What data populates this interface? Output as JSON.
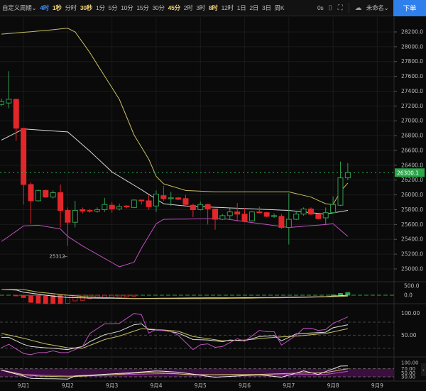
{
  "toolbar": {
    "periods": [
      {
        "label": "自定义周期⌄",
        "state": "normal"
      },
      {
        "label": "4时",
        "state": "active"
      },
      {
        "label": "1秒",
        "state": "fav"
      },
      {
        "label": "分时",
        "state": "normal"
      },
      {
        "label": "30秒",
        "state": "fav"
      },
      {
        "label": "1分",
        "state": "normal"
      },
      {
        "label": "5分",
        "state": "normal"
      },
      {
        "label": "10分",
        "state": "normal"
      },
      {
        "label": "15分",
        "state": "normal"
      },
      {
        "label": "30分",
        "state": "normal"
      },
      {
        "label": "45分",
        "state": "fav"
      },
      {
        "label": "2时",
        "state": "normal"
      },
      {
        "label": "3时",
        "state": "normal"
      },
      {
        "label": "8时",
        "state": "fav"
      },
      {
        "label": "12时",
        "state": "normal"
      },
      {
        "label": "1日",
        "state": "normal"
      },
      {
        "label": "2日",
        "state": "normal"
      },
      {
        "label": "3日",
        "state": "normal"
      },
      {
        "label": "周K",
        "state": "normal"
      }
    ],
    "countdown": "0s",
    "layout_name": "未命名⌄",
    "order_button": "下单",
    "icons": [
      "camera-icon",
      "fullscreen-icon",
      "cloud-icon"
    ]
  },
  "colors": {
    "background": "#0a0a0a",
    "up": "#2e9e4f",
    "down": "#e3262a",
    "boll_upper": "#c8c060",
    "boll_mid": "#d8d8d8",
    "boll_lower": "#c050c0",
    "price_tag": "#2aa84a",
    "accent": "#2f80ed"
  },
  "chart_data": {
    "type": "candlestick",
    "interval": "4时",
    "price_axis": {
      "ticks": [
        "28200.0",
        "28000.0",
        "27800.0",
        "27600.0",
        "27400.0",
        "27200.0",
        "27000.0",
        "26800.0",
        "26600.0",
        "26400.0",
        "26200.0",
        "26000.0",
        "25800.0",
        "25600.0",
        "25400.0",
        "25200.0",
        "25000.0"
      ],
      "ylim": [
        24900,
        28380
      ]
    },
    "last_price": "26300.1",
    "low_annotation": "25312",
    "x_ticks": [
      "9月1",
      "9月2",
      "9月3",
      "9月4",
      "9月5",
      "9月6",
      "9月7",
      "9月8",
      "9月9"
    ],
    "grid": true,
    "candles_ohlc": [
      [
        27220,
        27300,
        27200,
        27260
      ],
      [
        27240,
        27670,
        27170,
        27290
      ],
      [
        27290,
        27300,
        26730,
        26900
      ],
      [
        26900,
        26900,
        25870,
        26140
      ],
      [
        26140,
        26170,
        25610,
        25920
      ],
      [
        25920,
        26070,
        25910,
        26060
      ],
      [
        26060,
        26070,
        25960,
        25970
      ],
      [
        25970,
        26060,
        25950,
        26030
      ],
      [
        26030,
        26140,
        25560,
        25790
      ],
      [
        25790,
        25830,
        25312,
        25630
      ],
      [
        25630,
        25920,
        25560,
        25790
      ],
      [
        25800,
        25830,
        25750,
        25780
      ],
      [
        25790,
        25810,
        25760,
        25780
      ],
      [
        25780,
        25830,
        25760,
        25800
      ],
      [
        25800,
        25960,
        25770,
        25870
      ],
      [
        25860,
        25900,
        25760,
        25810
      ],
      [
        25810,
        25880,
        25790,
        25840
      ],
      [
        25850,
        25860,
        25820,
        25840
      ],
      [
        25830,
        25940,
        25820,
        25930
      ],
      [
        25930,
        25930,
        25870,
        25920
      ],
      [
        25920,
        26000,
        25800,
        25840
      ],
      [
        25850,
        26060,
        25770,
        26010
      ],
      [
        25990,
        26120,
        25920,
        25950
      ],
      [
        25950,
        26040,
        25850,
        25960
      ],
      [
        25960,
        25970,
        25930,
        25940
      ],
      [
        25950,
        26000,
        25860,
        25870
      ],
      [
        25860,
        25880,
        25700,
        25800
      ],
      [
        25800,
        25910,
        25790,
        25870
      ],
      [
        25870,
        25880,
        25600,
        25810
      ],
      [
        25810,
        25810,
        25530,
        25670
      ],
      [
        25670,
        25740,
        25660,
        25720
      ],
      [
        25720,
        25820,
        25660,
        25770
      ],
      [
        25770,
        25890,
        25640,
        25740
      ],
      [
        25740,
        25820,
        25630,
        25650
      ],
      [
        25650,
        25780,
        25640,
        25770
      ],
      [
        25770,
        25840,
        25750,
        25760
      ],
      [
        25760,
        25770,
        25700,
        25710
      ],
      [
        25710,
        25750,
        25690,
        25720
      ],
      [
        25710,
        25740,
        25540,
        25560
      ],
      [
        25560,
        26020,
        25330,
        25670
      ],
      [
        25670,
        25770,
        25660,
        25740
      ],
      [
        25740,
        25830,
        25720,
        25810
      ],
      [
        25810,
        25830,
        25730,
        25740
      ],
      [
        25740,
        25740,
        25670,
        25680
      ],
      [
        25690,
        25830,
        25600,
        25760
      ],
      [
        25760,
        25980,
        25760,
        25870
      ],
      [
        25860,
        26450,
        25850,
        26230
      ],
      [
        26230,
        26430,
        26200,
        26300.1
      ]
    ],
    "boll": {
      "upper": [
        [
          0,
          28170
        ],
        [
          6,
          28220
        ],
        [
          9,
          28250
        ],
        [
          10,
          28200
        ],
        [
          12,
          27920
        ],
        [
          16,
          27290
        ],
        [
          18,
          26810
        ],
        [
          20,
          26480
        ],
        [
          21,
          26250
        ],
        [
          22,
          26150
        ],
        [
          25,
          26060
        ],
        [
          29,
          26040
        ],
        [
          39,
          26040
        ],
        [
          42,
          25970
        ],
        [
          44,
          25880
        ],
        [
          45,
          25870
        ],
        [
          46,
          26045
        ],
        [
          47,
          26160
        ]
      ],
      "mid": [
        [
          0,
          26740
        ],
        [
          3,
          26890
        ],
        [
          9,
          26850
        ],
        [
          12,
          26590
        ],
        [
          15,
          26310
        ],
        [
          19,
          26070
        ],
        [
          22,
          25880
        ],
        [
          25,
          25850
        ],
        [
          39,
          25790
        ],
        [
          44,
          25740
        ],
        [
          47,
          25790
        ]
      ],
      "lower": [
        [
          0,
          25370
        ],
        [
          3,
          25580
        ],
        [
          5,
          25590
        ],
        [
          8,
          25540
        ],
        [
          9,
          25440
        ],
        [
          11,
          25310
        ],
        [
          16,
          25030
        ],
        [
          18,
          25090
        ],
        [
          19,
          25280
        ],
        [
          21,
          25610
        ],
        [
          22,
          25670
        ],
        [
          30,
          25680
        ],
        [
          39,
          25560
        ],
        [
          44,
          25600
        ],
        [
          45,
          25610
        ],
        [
          47,
          25440
        ]
      ]
    },
    "macd": {
      "axis_ticks": [
        "500.0",
        "0.0"
      ],
      "histogram": [
        0,
        0,
        -30,
        -130,
        -390,
        -430,
        -460,
        -460,
        -460,
        -440,
        -310,
        -280,
        -180,
        -160,
        -130,
        -120,
        -100,
        -80,
        -50,
        -10,
        5,
        8,
        10,
        12,
        15,
        12,
        10,
        10,
        10,
        12,
        10,
        10,
        10,
        12,
        12,
        10,
        10,
        10,
        10,
        10,
        12,
        12,
        10,
        12,
        15,
        20,
        100,
        150
      ],
      "dif": [
        [
          0,
          307
        ],
        [
          2,
          280
        ],
        [
          3,
          166
        ],
        [
          7,
          -51
        ],
        [
          9,
          -128
        ],
        [
          12,
          -154
        ],
        [
          18,
          -180
        ],
        [
          25,
          -154
        ],
        [
          37,
          -128
        ],
        [
          44,
          -77
        ],
        [
          47,
          0
        ]
      ],
      "dea": [
        [
          0,
          307
        ],
        [
          3,
          307
        ],
        [
          5,
          166
        ],
        [
          9,
          0
        ],
        [
          12,
          -102
        ],
        [
          18,
          -180
        ],
        [
          29,
          -180
        ],
        [
          40,
          -128
        ],
        [
          47,
          -51
        ]
      ]
    },
    "rsi": {
      "axis_ticks": [
        "100.00",
        "50.00"
      ],
      "levels": [
        80,
        50,
        20
      ],
      "rsi6": [
        [
          0,
          21
        ],
        [
          1,
          29
        ],
        [
          3,
          8
        ],
        [
          4,
          5
        ],
        [
          5,
          10
        ],
        [
          6,
          10
        ],
        [
          7,
          14
        ],
        [
          8,
          10
        ],
        [
          9,
          10
        ],
        [
          11,
          24
        ],
        [
          12,
          54
        ],
        [
          14,
          76
        ],
        [
          16,
          77
        ],
        [
          18,
          100
        ],
        [
          19,
          97
        ],
        [
          20,
          55
        ],
        [
          21,
          63
        ],
        [
          23,
          58
        ],
        [
          24,
          50
        ],
        [
          26,
          17
        ],
        [
          27,
          28
        ],
        [
          28,
          30
        ],
        [
          29,
          22
        ],
        [
          30,
          24
        ],
        [
          32,
          42
        ],
        [
          33,
          36
        ],
        [
          35,
          61
        ],
        [
          36,
          58
        ],
        [
          37,
          58
        ],
        [
          38,
          27
        ],
        [
          40,
          50
        ],
        [
          41,
          66
        ],
        [
          42,
          66
        ],
        [
          43,
          61
        ],
        [
          44,
          63
        ],
        [
          45,
          77
        ],
        [
          47,
          92
        ]
      ],
      "rsi12": [
        [
          0,
          45
        ],
        [
          1,
          45
        ],
        [
          3,
          29
        ],
        [
          4,
          24
        ],
        [
          6,
          21
        ],
        [
          7,
          20
        ],
        [
          9,
          17
        ],
        [
          11,
          24
        ],
        [
          12,
          35
        ],
        [
          14,
          51
        ],
        [
          16,
          59
        ],
        [
          18,
          74
        ],
        [
          19,
          76
        ],
        [
          20,
          63
        ],
        [
          22,
          61
        ],
        [
          24,
          55
        ],
        [
          26,
          40
        ],
        [
          28,
          39
        ],
        [
          30,
          35
        ],
        [
          31,
          39
        ],
        [
          33,
          37
        ],
        [
          35,
          47
        ],
        [
          37,
          49
        ],
        [
          38,
          37
        ],
        [
          40,
          53
        ],
        [
          42,
          55
        ],
        [
          44,
          57
        ],
        [
          45,
          67
        ],
        [
          47,
          74
        ]
      ],
      "rsi24": [
        [
          0,
          54
        ],
        [
          3,
          43
        ],
        [
          6,
          30
        ],
        [
          9,
          21
        ],
        [
          11,
          20
        ],
        [
          14,
          40
        ],
        [
          16,
          48
        ],
        [
          19,
          65
        ],
        [
          22,
          62
        ],
        [
          24,
          59
        ],
        [
          26,
          47
        ],
        [
          30,
          37
        ],
        [
          33,
          39
        ],
        [
          37,
          45
        ],
        [
          40,
          48
        ],
        [
          44,
          54
        ],
        [
          47,
          65
        ]
      ]
    },
    "osc": {
      "axis_ticks": [
        "100.00",
        "70.00",
        "50.00",
        "30.00"
      ],
      "band": [
        30,
        70
      ],
      "line_white": [
        [
          0,
          63
        ],
        [
          3,
          34
        ],
        [
          4,
          22
        ],
        [
          9,
          19
        ],
        [
          10,
          34
        ],
        [
          18,
          51
        ],
        [
          21,
          59
        ],
        [
          24,
          53
        ],
        [
          29,
          28
        ],
        [
          35,
          40
        ],
        [
          38,
          28
        ],
        [
          41,
          59
        ],
        [
          43,
          42
        ],
        [
          46,
          83
        ],
        [
          47,
          84
        ]
      ],
      "line_yellow": [
        [
          0,
          63
        ],
        [
          3,
          40
        ],
        [
          5,
          34
        ],
        [
          9,
          30
        ],
        [
          15,
          40
        ],
        [
          20,
          53
        ],
        [
          26,
          40
        ],
        [
          35,
          42
        ],
        [
          40,
          48
        ],
        [
          44,
          51
        ],
        [
          47,
          70
        ]
      ],
      "line_magenta": [
        [
          0,
          63
        ],
        [
          3,
          42
        ],
        [
          9,
          34
        ],
        [
          22,
          46
        ],
        [
          29,
          40
        ],
        [
          37,
          40
        ],
        [
          44,
          42
        ],
        [
          47,
          57
        ]
      ]
    }
  }
}
